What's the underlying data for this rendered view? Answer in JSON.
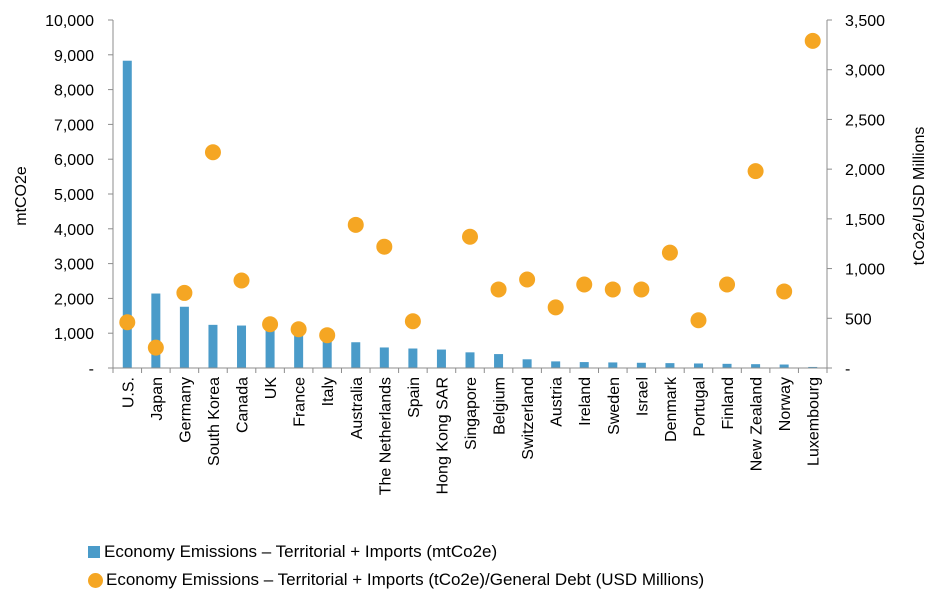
{
  "chart_data": {
    "type": "bar",
    "categories": [
      "U.S.",
      "Japan",
      "Germany",
      "South Korea",
      "Canada",
      "UK",
      "France",
      "Italy",
      "Australia",
      "The Netherlands",
      "Spain",
      "Hong Kong SAR",
      "Singapore",
      "Belgium",
      "Switzerland",
      "Austria",
      "Ireland",
      "Sweden",
      "Israel",
      "Denmark",
      "Portugal",
      "Finland",
      "New Zealand",
      "Norway",
      "Luxembourg"
    ],
    "series": [
      {
        "name": "Economy Emissions – Territorial + Imports (mtCo2e)",
        "type": "bar",
        "axis": "left",
        "color": "#4a9bc9",
        "values": [
          8830,
          2140,
          1760,
          1240,
          1220,
          1090,
          950,
          790,
          740,
          590,
          560,
          530,
          450,
          400,
          250,
          190,
          170,
          160,
          150,
          140,
          130,
          120,
          110,
          100,
          30
        ]
      },
      {
        "name": "Economy Emissions – Territorial + Imports (tCo2e)/General Debt (USD Millions)",
        "type": "scatter",
        "axis": "right",
        "color": "#f5a623",
        "values": [
          460,
          205,
          755,
          2170,
          880,
          440,
          390,
          330,
          1440,
          1220,
          470,
          null,
          1320,
          790,
          890,
          610,
          840,
          790,
          790,
          1160,
          480,
          840,
          1980,
          770,
          3290
        ]
      }
    ],
    "ylabel": "mtCO2e",
    "ylabel_right": "tCo2e/USD Millions",
    "ylim": [
      0,
      10000
    ],
    "ylim_right": [
      0,
      3500
    ],
    "yticks": [
      "-",
      "1,000",
      "2,000",
      "3,000",
      "4,000",
      "5,000",
      "6,000",
      "7,000",
      "8,000",
      "9,000",
      "10,000"
    ],
    "yticks_right": [
      "-",
      "500",
      "1,000",
      "1,500",
      "2,000",
      "2,500",
      "3,000",
      "3,500"
    ],
    "grid": false,
    "legend_position": "bottom"
  }
}
